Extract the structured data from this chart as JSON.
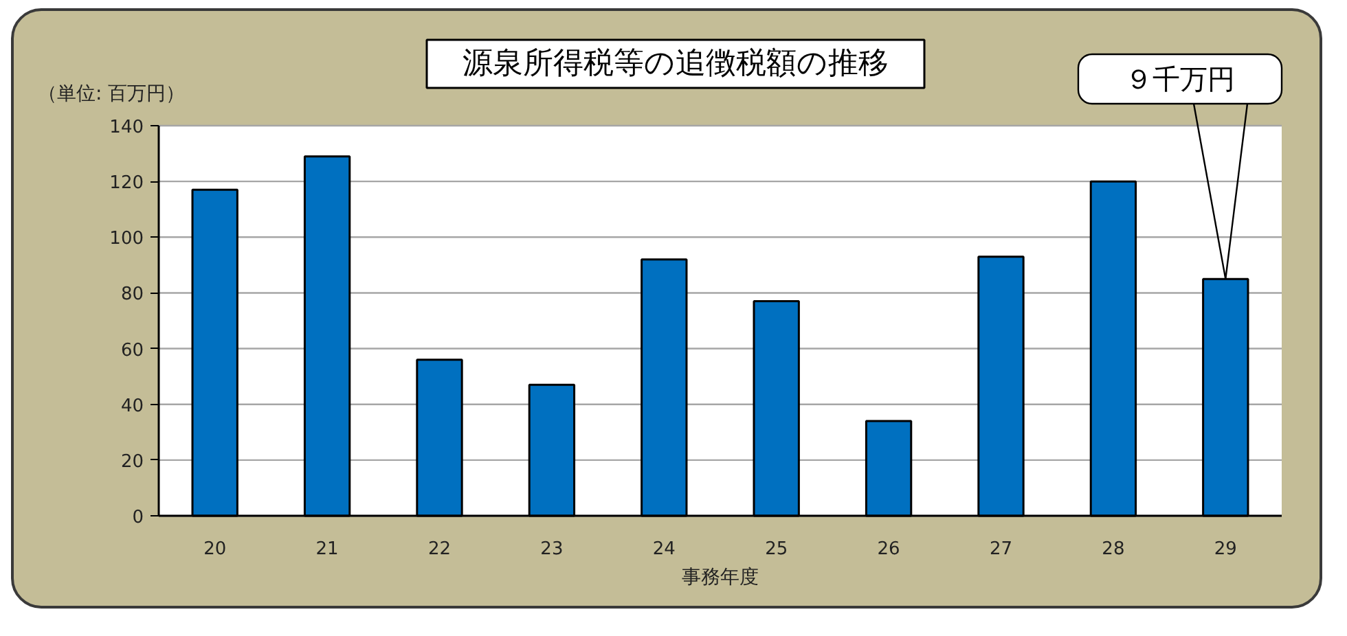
{
  "chart_data": {
    "type": "bar",
    "title": "源泉所得税等の追徴税額の推移",
    "xlabel": "事務年度",
    "ylabel": "（単位: 百万円）",
    "categories": [
      "20",
      "21",
      "22",
      "23",
      "24",
      "25",
      "26",
      "27",
      "28",
      "29"
    ],
    "values": [
      117,
      129,
      56,
      47,
      92,
      77,
      34,
      93,
      120,
      85
    ],
    "color": "#0070c0",
    "ylim": [
      0,
      140
    ],
    "yticks": [
      0,
      20,
      40,
      60,
      80,
      100,
      120,
      140
    ],
    "grid": "y",
    "annotations": [
      {
        "text": "９千万円",
        "x": "29",
        "y": 85
      }
    ]
  }
}
